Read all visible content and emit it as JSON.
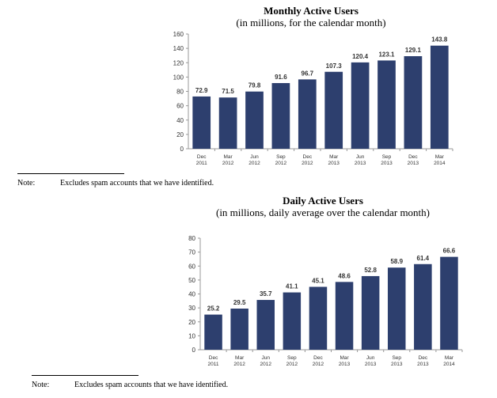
{
  "chart_data": [
    {
      "type": "bar",
      "title": "Monthly Active Users",
      "subtitle": "(in millions, for the calendar month)",
      "categories": [
        [
          "Dec",
          "2011"
        ],
        [
          "Mar",
          "2012"
        ],
        [
          "Jun",
          "2012"
        ],
        [
          "Sep",
          "2012"
        ],
        [
          "Dec",
          "2012"
        ],
        [
          "Mar",
          "2013"
        ],
        [
          "Jun",
          "2013"
        ],
        [
          "Sep",
          "2013"
        ],
        [
          "Dec",
          "2013"
        ],
        [
          "Mar",
          "2014"
        ]
      ],
      "values": [
        72.9,
        71.5,
        79.8,
        91.6,
        96.7,
        107.3,
        120.4,
        123.1,
        129.1,
        143.8
      ],
      "data_labels": [
        "72.9",
        "71.5",
        "79.8",
        "91.6",
        "96.7",
        "107.3",
        "120.4",
        "123.1",
        "129.1",
        "143.8"
      ],
      "yticks": [
        0,
        20,
        40,
        60,
        80,
        100,
        120,
        140,
        160
      ],
      "ylim": [
        0,
        160
      ],
      "xlabel": "",
      "ylabel": "",
      "grid": false,
      "bar_color": "#2d3f6e"
    },
    {
      "type": "bar",
      "title": "Daily Active Users",
      "subtitle": "(in millions, daily average over the calendar month)",
      "categories": [
        [
          "Dec",
          "2011"
        ],
        [
          "Mar",
          "2012"
        ],
        [
          "Jun",
          "2012"
        ],
        [
          "Sep",
          "2012"
        ],
        [
          "Dec",
          "2012"
        ],
        [
          "Mar",
          "2013"
        ],
        [
          "Jun",
          "2013"
        ],
        [
          "Sep",
          "2013"
        ],
        [
          "Dec",
          "2013"
        ],
        [
          "Mar",
          "2014"
        ]
      ],
      "values": [
        25.2,
        29.5,
        35.7,
        41.1,
        45.1,
        48.6,
        52.8,
        58.9,
        61.4,
        66.6
      ],
      "data_labels": [
        "25.2",
        "29.5",
        "35.7",
        "41.1",
        "45.1",
        "48.6",
        "52.8",
        "58.9",
        "61.4",
        "66.6"
      ],
      "yticks": [
        0,
        10,
        20,
        30,
        40,
        50,
        60,
        70,
        80
      ],
      "ylim": [
        0,
        80
      ],
      "xlabel": "",
      "ylabel": "",
      "grid": false,
      "bar_color": "#2d3f6e"
    }
  ],
  "notes": [
    {
      "label": "Note:",
      "text": "Excludes spam accounts that we have identified."
    },
    {
      "label": "Note:",
      "text": "Excludes spam accounts that we have identified."
    }
  ]
}
